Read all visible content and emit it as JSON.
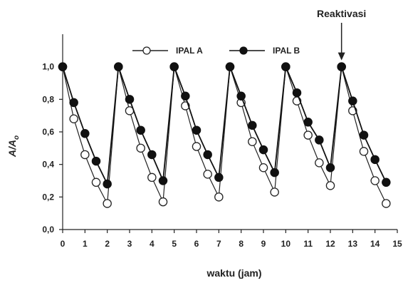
{
  "chart_data": {
    "type": "line",
    "title": "",
    "xlabel": "waktu (jam)",
    "ylabel": "A/A",
    "ylabel_subscript": "o",
    "xlim": [
      0,
      15
    ],
    "ylim": [
      0,
      1.2
    ],
    "x_ticks": [
      "0",
      "1",
      "2",
      "3",
      "4",
      "5",
      "6",
      "7",
      "8",
      "9",
      "10",
      "11",
      "12",
      "13",
      "14",
      "15"
    ],
    "y_ticks": [
      "0,0",
      "0,2",
      "0,4",
      "0,6",
      "0,8",
      "1,0"
    ],
    "grid": false,
    "legend_position": "top",
    "series": [
      {
        "name": "IPAL A",
        "marker": "open-circle",
        "color": "#222222",
        "x": [
          0,
          0.5,
          1,
          1.5,
          2,
          2.5,
          3,
          3.5,
          4,
          4.5,
          5,
          5.5,
          6,
          6.5,
          7,
          7.5,
          8,
          8.5,
          9,
          9.5,
          10,
          10.5,
          11,
          11.5,
          12,
          12.5,
          13,
          13.5,
          14,
          14.5
        ],
        "y": [
          1.0,
          0.68,
          0.46,
          0.29,
          0.16,
          1.0,
          0.73,
          0.5,
          0.32,
          0.17,
          1.0,
          0.76,
          0.51,
          0.34,
          0.2,
          1.0,
          0.78,
          0.54,
          0.38,
          0.23,
          1.0,
          0.79,
          0.58,
          0.41,
          0.27,
          1.0,
          0.73,
          0.48,
          0.3,
          0.16
        ]
      },
      {
        "name": "IPAL B",
        "marker": "filled-circle",
        "color": "#111111",
        "x": [
          0,
          0.5,
          1,
          1.5,
          2,
          2.5,
          3,
          3.5,
          4,
          4.5,
          5,
          5.5,
          6,
          6.5,
          7,
          7.5,
          8,
          8.5,
          9,
          9.5,
          10,
          10.5,
          11,
          11.5,
          12,
          12.5,
          13,
          13.5,
          14,
          14.5
        ],
        "y": [
          1.0,
          0.78,
          0.59,
          0.42,
          0.28,
          1.0,
          0.8,
          0.61,
          0.46,
          0.3,
          1.0,
          0.82,
          0.61,
          0.46,
          0.32,
          1.0,
          0.82,
          0.64,
          0.49,
          0.35,
          1.0,
          0.84,
          0.66,
          0.55,
          0.38,
          1.0,
          0.79,
          0.58,
          0.43,
          0.29
        ]
      }
    ],
    "annotations": [
      {
        "text": "Reaktivasi",
        "x": 12.5,
        "y": 1.0,
        "arrow": true
      }
    ]
  }
}
